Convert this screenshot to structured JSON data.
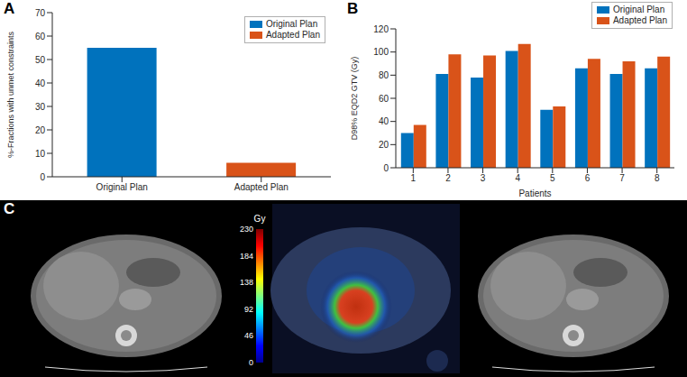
{
  "chart_data": [
    {
      "panel": "A",
      "type": "bar",
      "categories": [
        "Original Plan",
        "Adapted Plan"
      ],
      "values": [
        55,
        6
      ],
      "colors": [
        "#0072BD",
        "#D95319"
      ],
      "y_label": "%-Fractions with unmet constraints",
      "ylim": [
        0,
        70
      ],
      "yticks": [
        0,
        10,
        20,
        30,
        40,
        50,
        60,
        70
      ],
      "legend": "top right",
      "grid": false
    },
    {
      "panel": "B",
      "type": "bar",
      "x_label": "Patients",
      "y_label": "D98% EQD2 GTV (Gy)",
      "categories": [
        "1",
        "2",
        "3",
        "4",
        "5",
        "6",
        "7",
        "8"
      ],
      "series": [
        {
          "name": "Original Plan",
          "color": "#0072BD",
          "values": [
            30,
            81,
            78,
            101,
            50,
            86,
            81,
            86
          ]
        },
        {
          "name": "Adapted Plan",
          "color": "#D95319",
          "values": [
            37,
            98,
            97,
            107,
            53,
            94,
            92,
            96
          ]
        }
      ],
      "ylim": [
        0,
        120
      ],
      "yticks": [
        0,
        20,
        40,
        60,
        80,
        100,
        120
      ],
      "legend": "top right",
      "grid": false
    }
  ],
  "image_panel": {
    "panel": "C",
    "colorbar": {
      "label": "Gy",
      "range": [
        0,
        230
      ],
      "ticks": [
        0,
        46,
        92,
        138,
        184,
        230
      ]
    }
  }
}
